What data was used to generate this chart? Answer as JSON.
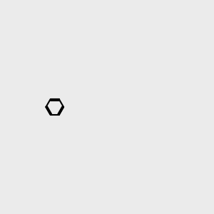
{
  "bg_color": "#ebebeb",
  "bond_color": "#000000",
  "bond_width": 1.5,
  "atom_colors": {
    "N": "#0000ff",
    "O": "#ff0000",
    "H": "#000000",
    "NH": "#0000ff",
    "C": "#000000"
  },
  "font_size": 7,
  "fig_size": [
    3.0,
    3.0
  ],
  "dpi": 100
}
